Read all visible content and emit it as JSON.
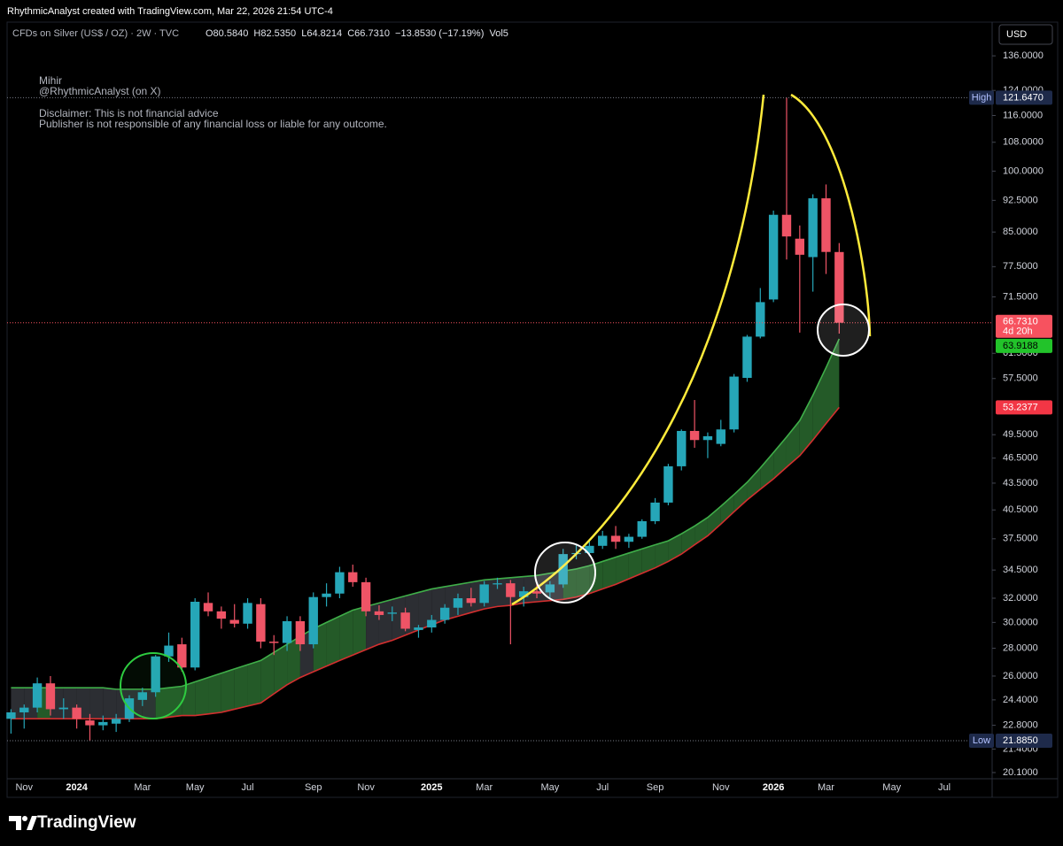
{
  "header": {
    "credit": "RhythmicAnalyst created with TradingView.com, Mar 22, 2026 21:54 UTC-4"
  },
  "chart_data": {
    "type": "candlestick",
    "symbol": "CFDs on Silver (US$ / OZ) · 2W · TVC",
    "ohlc_text": "O80.5840  H82.5350  L64.8214  C66.7310  −13.8530 (−17.19%)  Vol5",
    "currency": "USD",
    "log_scale": true,
    "up_color": "#26a6b8",
    "down_color": "#ef5466",
    "categories": [
      null,
      "Nov",
      null,
      null,
      null,
      "2024",
      null,
      null,
      null,
      null,
      "Mar",
      null,
      null,
      null,
      "May",
      null,
      null,
      null,
      "Jul",
      null,
      null,
      null,
      null,
      "Sep",
      null,
      null,
      null,
      "Nov",
      null,
      null,
      null,
      null,
      "2025",
      null,
      null,
      null,
      "Mar",
      null,
      null,
      null,
      null,
      "May",
      null,
      null,
      null,
      "Jul",
      null,
      null,
      null,
      "Sep",
      null,
      null,
      null,
      null,
      "Nov",
      null,
      null,
      null,
      "2026",
      null,
      null,
      null,
      "Mar",
      null,
      null,
      null,
      null,
      "May",
      null,
      null,
      null,
      "Jul",
      null,
      null,
      null
    ],
    "open": [
      23.2,
      23.6,
      23.9,
      25.5,
      23.8,
      23.9,
      23.1,
      22.8,
      22.9,
      23.2,
      24.4,
      24.9,
      27.4,
      28.3,
      26.6,
      31.6,
      30.9,
      30.2,
      29.9,
      31.5,
      28.5,
      28.4,
      30.1,
      28.3,
      32.1,
      32.4,
      34.3,
      33.4,
      30.9,
      30.7,
      30.8,
      29.4,
      29.6,
      30.2,
      31.2,
      32.0,
      31.6,
      33.2,
      33.3,
      32.1,
      32.6,
      32.5,
      33.2,
      36.0,
      36.1,
      36.8,
      37.8,
      37.2,
      37.7,
      39.3,
      41.3,
      45.5,
      50.0,
      48.8,
      48.3,
      50.2,
      57.6,
      64.3,
      71.0,
      89.0,
      83.5,
      79.5,
      93.0,
      80.584,
      null,
      null,
      null,
      null,
      null,
      null,
      null,
      null,
      null,
      null,
      null
    ],
    "high": [
      23.8,
      24.1,
      25.9,
      26.0,
      24.5,
      24.1,
      23.5,
      23.4,
      23.5,
      24.7,
      25.2,
      27.5,
      29.2,
      28.8,
      32.0,
      32.5,
      31.3,
      31.5,
      32.0,
      32.0,
      29.0,
      30.5,
      30.5,
      32.5,
      33.3,
      34.8,
      35.0,
      33.8,
      31.4,
      31.3,
      31.2,
      29.8,
      30.6,
      31.5,
      32.4,
      32.9,
      33.5,
      33.8,
      33.6,
      33.0,
      33.4,
      33.5,
      36.5,
      37.0,
      37.3,
      38.3,
      38.8,
      38.0,
      39.5,
      41.8,
      45.8,
      50.2,
      54.3,
      49.8,
      51.5,
      58.2,
      64.6,
      73.2,
      90.0,
      121.647,
      86.5,
      94.0,
      96.5,
      82.535,
      null,
      null,
      null,
      null,
      null,
      null,
      null,
      null,
      null,
      null,
      null
    ],
    "low": [
      22.3,
      22.6,
      23.6,
      23.4,
      23.2,
      22.6,
      21.885,
      22.5,
      22.4,
      23.0,
      24.0,
      24.6,
      27.0,
      26.3,
      26.4,
      30.5,
      29.5,
      29.6,
      29.5,
      28.0,
      27.5,
      27.8,
      27.8,
      28.0,
      31.3,
      32.0,
      33.0,
      30.5,
      30.2,
      30.1,
      29.3,
      28.8,
      29.2,
      29.9,
      30.6,
      31.3,
      31.3,
      32.8,
      28.3,
      31.3,
      32.0,
      32.0,
      32.9,
      35.5,
      35.8,
      36.5,
      36.5,
      36.6,
      37.5,
      39.0,
      41.0,
      45.0,
      47.8,
      46.5,
      48.0,
      49.8,
      57.0,
      64.0,
      70.5,
      79.0,
      65.0,
      72.5,
      76.0,
      64.8214,
      null,
      null,
      null,
      null,
      null,
      null,
      null,
      null,
      null,
      null,
      null
    ],
    "close": [
      23.6,
      23.9,
      25.5,
      23.8,
      23.9,
      23.2,
      22.8,
      23.0,
      23.2,
      24.5,
      24.9,
      27.4,
      28.2,
      26.6,
      31.7,
      30.9,
      30.3,
      29.9,
      31.6,
      28.5,
      28.4,
      30.1,
      28.3,
      32.1,
      32.4,
      34.3,
      33.4,
      30.9,
      30.6,
      30.8,
      29.5,
      29.6,
      30.2,
      31.2,
      32.0,
      31.6,
      33.2,
      33.3,
      32.1,
      32.6,
      32.4,
      33.2,
      36.0,
      36.1,
      36.8,
      37.8,
      37.2,
      37.7,
      39.3,
      41.3,
      45.5,
      50.0,
      48.8,
      49.3,
      50.2,
      57.8,
      64.3,
      70.5,
      89.0,
      84.0,
      80.0,
      93.0,
      80.6,
      66.731,
      null,
      null,
      null,
      null,
      null,
      null,
      null,
      null,
      null,
      null,
      null
    ],
    "bands": [
      {
        "color": "#3fae49",
        "values": [
          25.2,
          25.2,
          25.2,
          25.2,
          25.2,
          25.2,
          25.2,
          25.2,
          25.1,
          25.1,
          25.1,
          25.1,
          25.2,
          25.3,
          25.6,
          25.9,
          26.2,
          26.5,
          26.8,
          27.1,
          27.7,
          28.3,
          28.9,
          29.5,
          30.0,
          30.5,
          31.0,
          31.3,
          31.6,
          31.9,
          32.2,
          32.5,
          32.8,
          33.0,
          33.2,
          33.4,
          33.6,
          33.7,
          33.8,
          33.9,
          34.0,
          34.2,
          34.4,
          34.6,
          34.9,
          35.3,
          35.7,
          36.1,
          36.5,
          36.9,
          37.3,
          38.0,
          38.8,
          39.7,
          40.9,
          42.2,
          43.6,
          45.3,
          47.2,
          49.2,
          51.4,
          55.0,
          59.2,
          63.9188,
          null,
          null,
          null,
          null,
          null,
          null,
          null,
          null,
          null,
          null,
          null
        ]
      },
      {
        "color": "#d32f2f",
        "values": [
          23.2,
          23.2,
          23.2,
          23.2,
          23.2,
          23.2,
          23.2,
          23.2,
          23.2,
          23.2,
          23.2,
          23.2,
          23.3,
          23.4,
          23.4,
          23.5,
          23.6,
          23.8,
          24.0,
          24.2,
          24.8,
          25.4,
          25.9,
          26.3,
          26.7,
          27.1,
          27.5,
          27.9,
          28.3,
          28.6,
          29.0,
          29.4,
          29.8,
          30.2,
          30.5,
          30.8,
          31.1,
          31.3,
          31.4,
          31.6,
          31.7,
          31.8,
          31.9,
          32.1,
          32.4,
          32.8,
          33.2,
          33.7,
          34.2,
          34.7,
          35.3,
          36.0,
          36.9,
          37.8,
          39.0,
          40.3,
          41.6,
          42.8,
          44.0,
          45.4,
          46.8,
          48.8,
          51.0,
          53.2377,
          null,
          null,
          null,
          null,
          null,
          null,
          null,
          null,
          null,
          null,
          null
        ]
      }
    ],
    "band_fill": {
      "above": "#2a6a2f",
      "inside": "#34363c"
    },
    "markers": {
      "high": {
        "text": "High",
        "value": 121.647,
        "label": "121.6470"
      },
      "low": {
        "text": "Low",
        "value": 21.885,
        "label": "21.8850"
      },
      "last": {
        "value": 66.731,
        "label": "66.7310",
        "countdown": "4d 20h"
      }
    },
    "ylim": [
      19.77,
      148.8
    ],
    "yticks": [
      {
        "value": 136,
        "label": "136.0000"
      },
      {
        "value": 124,
        "label": "124.0000"
      },
      {
        "value": 116,
        "label": "116.0000"
      },
      {
        "value": 108,
        "label": "108.0000"
      },
      {
        "value": 100,
        "label": "100.0000"
      },
      {
        "value": 92.5,
        "label": "92.5000"
      },
      {
        "value": 85,
        "label": "85.0000"
      },
      {
        "value": 77.5,
        "label": "77.5000"
      },
      {
        "value": 71.5,
        "label": "71.5000"
      },
      {
        "value": 61.5,
        "label": "61.5000"
      },
      {
        "value": 57.5,
        "label": "57.5000"
      },
      {
        "value": 49.5,
        "label": "49.5000"
      },
      {
        "value": 46.5,
        "label": "46.5000"
      },
      {
        "value": 43.5,
        "label": "43.5000"
      },
      {
        "value": 40.5,
        "label": "40.5000"
      },
      {
        "value": 37.5,
        "label": "37.5000"
      },
      {
        "value": 34.5,
        "label": "34.5000"
      },
      {
        "value": 32,
        "label": "32.0000"
      },
      {
        "value": 30,
        "label": "30.0000"
      },
      {
        "value": 28,
        "label": "28.0000"
      },
      {
        "value": 26,
        "label": "26.0000"
      },
      {
        "value": 24.4,
        "label": "24.4000"
      },
      {
        "value": 22.8,
        "label": "22.8000"
      },
      {
        "value": 21.4,
        "label": "21.4000"
      },
      {
        "value": 20.1,
        "label": "20.1000"
      }
    ],
    "annotations": [
      "Mihir",
      "@RhythmicAnalyst (on X)",
      "Disclaimer: This is not financial advice",
      "Publisher is not responsible of any financial loss or liable for any outcome."
    ]
  },
  "footer": {
    "brand": "TradingView"
  }
}
